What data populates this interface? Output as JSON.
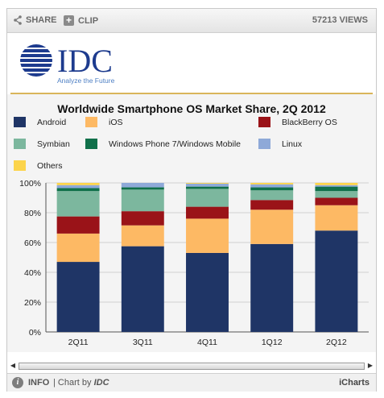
{
  "toolbar": {
    "share_label": "SHARE",
    "clip_label": "CLIP",
    "views_count": "57213",
    "views_label": "VIEWS"
  },
  "logo": {
    "brand": "IDC",
    "tagline": "Analyze the Future"
  },
  "footer": {
    "info_label": "INFO",
    "chart_by_label": "| Chart by",
    "chart_by_brand": "IDC",
    "icharts_label": "iCharts"
  },
  "colors": {
    "Android": "#1f3566",
    "iOS": "#fdb964",
    "BlackBerry OS": "#9a1318",
    "Symbian": "#7cb79e",
    "Windows Phone 7/Windows Mobile": "#10704a",
    "Linux": "#8ea9d8",
    "Others": "#fcd44b"
  },
  "chart_data": {
    "type": "bar",
    "stacked": true,
    "title": "Worldwide Smartphone OS Market Share, 2Q 2012",
    "categories": [
      "2Q11",
      "3Q11",
      "4Q11",
      "1Q12",
      "2Q12"
    ],
    "yticks": [
      "0%",
      "20%",
      "40%",
      "60%",
      "80%",
      "100%"
    ],
    "ylim": [
      0,
      100
    ],
    "legend_position": "top",
    "series": [
      {
        "name": "Android",
        "values": [
          47,
          57.5,
          53,
          59,
          68
        ]
      },
      {
        "name": "iOS",
        "values": [
          19,
          14,
          23,
          23,
          17
        ]
      },
      {
        "name": "BlackBerry OS",
        "values": [
          11.5,
          9.5,
          8,
          6.5,
          5
        ]
      },
      {
        "name": "Symbian",
        "values": [
          17,
          14.5,
          12,
          6.5,
          4.5
        ]
      },
      {
        "name": "Windows Phone 7/Windows Mobile",
        "values": [
          2,
          1.5,
          1.5,
          2,
          3
        ]
      },
      {
        "name": "Linux",
        "values": [
          2,
          3,
          2,
          2,
          1
        ]
      },
      {
        "name": "Others",
        "values": [
          1.5,
          0,
          0.5,
          1,
          1.5
        ]
      }
    ]
  }
}
